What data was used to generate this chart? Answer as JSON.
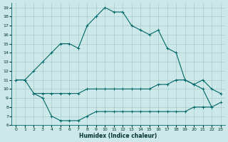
{
  "xlabel": "Humidex (Indice chaleur)",
  "xlim": [
    -0.5,
    23.5
  ],
  "ylim": [
    6,
    19.5
  ],
  "xticks": [
    0,
    1,
    2,
    3,
    4,
    5,
    6,
    7,
    8,
    9,
    10,
    11,
    12,
    13,
    14,
    15,
    16,
    17,
    18,
    19,
    20,
    21,
    22,
    23
  ],
  "yticks": [
    6,
    7,
    8,
    9,
    10,
    11,
    12,
    13,
    14,
    15,
    16,
    17,
    18,
    19
  ],
  "background_color": "#cce8e8",
  "grid_color": "#aacccc",
  "line_color": "#006868",
  "line1_x": [
    0,
    1,
    2,
    3,
    4,
    5,
    6,
    7,
    8,
    9,
    10,
    11,
    12,
    13,
    14,
    15,
    16,
    17,
    18,
    19,
    20,
    21,
    22
  ],
  "line1_y": [
    11,
    11,
    12,
    13,
    14,
    15,
    15,
    14.5,
    17,
    18,
    19,
    18.5,
    18.5,
    17,
    16.5,
    16,
    16.5,
    14.5,
    14,
    11,
    10.5,
    10,
    8
  ],
  "line2_x": [
    0,
    1,
    2,
    3,
    4,
    5,
    6,
    7,
    8,
    9,
    10,
    11,
    12,
    13,
    14,
    15,
    16,
    17,
    18,
    19,
    20,
    21,
    22,
    23
  ],
  "line2_y": [
    11,
    11,
    9.5,
    9.5,
    9.5,
    9.5,
    9.5,
    9.5,
    10,
    10,
    10,
    10,
    10,
    10,
    10,
    10,
    10.5,
    10.5,
    11,
    11,
    10.5,
    11,
    10,
    9.5
  ],
  "line3_x": [
    2,
    3,
    4,
    5,
    6,
    7,
    8,
    9,
    10,
    11,
    12,
    13,
    14,
    15,
    16,
    17,
    18,
    19,
    20,
    21,
    22,
    23
  ],
  "line3_y": [
    9.5,
    9,
    7,
    6.5,
    6.5,
    6.5,
    7,
    7.5,
    7.5,
    7.5,
    7.5,
    7.5,
    7.5,
    7.5,
    7.5,
    7.5,
    7.5,
    7.5,
    8,
    8,
    8,
    8.5
  ]
}
